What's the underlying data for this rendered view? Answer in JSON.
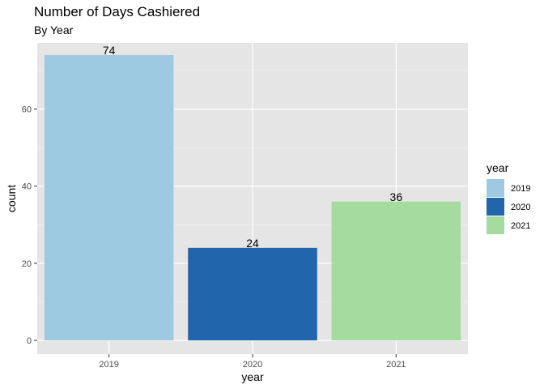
{
  "chart_data": {
    "type": "bar",
    "title": "Number of Days Cashiered",
    "subtitle": "By Year",
    "xlabel": "year",
    "ylabel": "count",
    "categories": [
      "2019",
      "2020",
      "2021"
    ],
    "values": [
      74,
      24,
      36
    ],
    "data_labels": [
      "74",
      "24",
      "36"
    ],
    "colors": [
      "#9ecae1",
      "#2166ac",
      "#a6dba0"
    ],
    "ylim": [
      0,
      77.7
    ],
    "yticks": [
      0,
      20,
      40,
      60
    ],
    "ytick_labels": [
      "0",
      "20",
      "40",
      "60"
    ],
    "grid": true,
    "panel_background": "#e5e5e5",
    "legend": {
      "title": "year",
      "position": "right",
      "entries": [
        "2019",
        "2020",
        "2021"
      ]
    }
  }
}
